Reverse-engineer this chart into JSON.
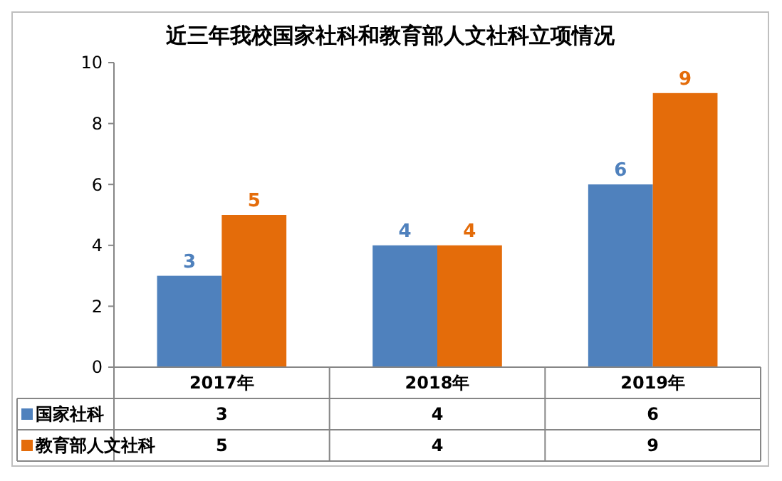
{
  "chart_data": {
    "type": "bar",
    "title": "近三年我校国家社科和教育部人文社科立项情况",
    "categories": [
      "2017年",
      "2018年",
      "2019年"
    ],
    "series": [
      {
        "name": "国家社科",
        "color": "#4f81bd",
        "values": [
          3,
          4,
          6
        ]
      },
      {
        "name": "教育部人文社科",
        "color": "#e46c0a",
        "values": [
          5,
          4,
          9
        ]
      }
    ],
    "annotations": [
      {
        "text": "3",
        "x": "2017年",
        "y": 3
      },
      {
        "text": "5",
        "x": "2017年",
        "y": 5
      },
      {
        "text": "4",
        "x": "2018年",
        "y": 4
      },
      {
        "text": "4",
        "x": "2018年",
        "y": 4
      },
      {
        "text": "6",
        "x": "2019年",
        "y": 6
      },
      {
        "text": "9",
        "x": "2019年",
        "y": 9
      }
    ],
    "ylim": [
      0,
      10
    ],
    "yticks": [
      0,
      2,
      4,
      6,
      8,
      10
    ],
    "data_labels": true,
    "grid": false,
    "legend": "bottom"
  }
}
